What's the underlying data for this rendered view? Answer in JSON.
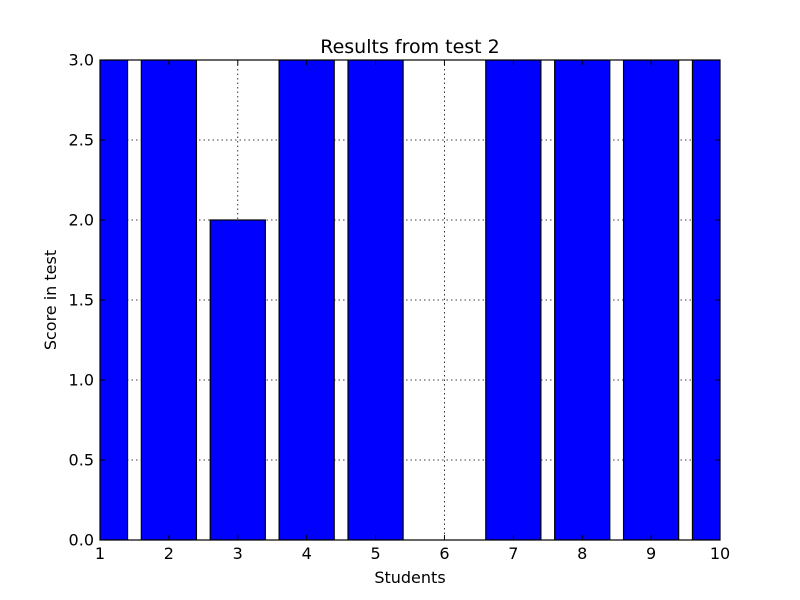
{
  "chart_data": {
    "type": "bar",
    "title": "Results from test 2",
    "xlabel": "Students",
    "ylabel": "Score in test",
    "x": [
      1,
      2,
      3,
      4,
      5,
      6,
      7,
      8,
      9,
      10
    ],
    "values": [
      3,
      3,
      2,
      3,
      3,
      0,
      3,
      3,
      3,
      3
    ],
    "xlim": [
      1,
      10
    ],
    "ylim": [
      0,
      3.0
    ],
    "xticks": [
      "1",
      "2",
      "3",
      "4",
      "5",
      "6",
      "7",
      "8",
      "9",
      "10"
    ],
    "yticks": [
      "0.0",
      "0.5",
      "1.0",
      "1.5",
      "2.0",
      "2.5",
      "3.0"
    ],
    "bar_width": 0.8,
    "grid": true,
    "bar_color": "#0000ff"
  }
}
